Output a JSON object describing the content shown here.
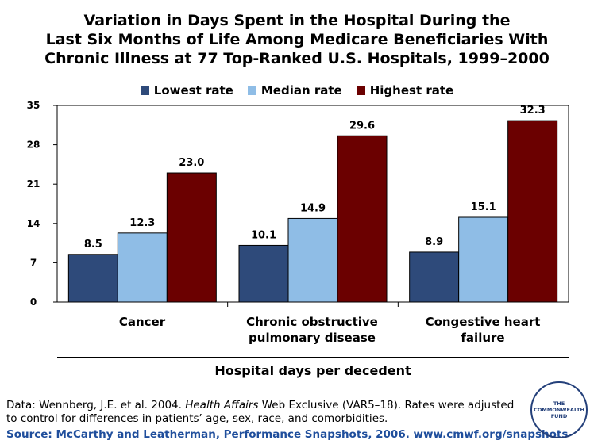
{
  "chart_data": {
    "type": "bar",
    "title": [
      "Variation in Days Spent in the Hospital During the",
      "Last Six Months of Life Among Medicare Beneficiaries With",
      "Chronic Illness at 77 Top-Ranked U.S. Hospitals, 1999–2000"
    ],
    "categories": [
      [
        "Cancer"
      ],
      [
        "Chronic obstructive",
        "pulmonary disease"
      ],
      [
        "Congestive heart",
        "failure"
      ]
    ],
    "series": [
      {
        "name": "Lowest rate",
        "color": "#2e4a7a",
        "values": [
          8.5,
          10.1,
          8.9
        ],
        "labels": [
          "8.5",
          "10.1",
          "8.9"
        ]
      },
      {
        "name": "Median rate",
        "color": "#8fbde6",
        "values": [
          12.3,
          14.9,
          15.1
        ],
        "labels": [
          "12.3",
          "14.9",
          "15.1"
        ]
      },
      {
        "name": "Highest rate",
        "color": "#6b0000",
        "values": [
          23.0,
          29.6,
          32.3
        ],
        "labels": [
          "23.0",
          "29.6",
          "32.3"
        ]
      }
    ],
    "ylim": [
      0,
      35
    ],
    "yticks": [
      0,
      7,
      14,
      21,
      28,
      35
    ],
    "xlabel": "Hospital days per decedent",
    "ylabel": "",
    "grid": false,
    "legend": "top-center"
  },
  "footnote": {
    "prefix": "Data: Wennberg, J.E. et al. 2004. ",
    "journal": "Health Affairs",
    "suffix": " Web Exclusive (VAR5–18). Rates were adjusted to control for differences in patients’ age, sex, race, and comorbidities."
  },
  "source": "Source: McCarthy and Leatherman, Performance Snapshots, 2006. www.cmwf.org/snapshots",
  "logo": {
    "line1": "THE",
    "line2": "COMMONWEALTH",
    "line3": "FUND"
  }
}
